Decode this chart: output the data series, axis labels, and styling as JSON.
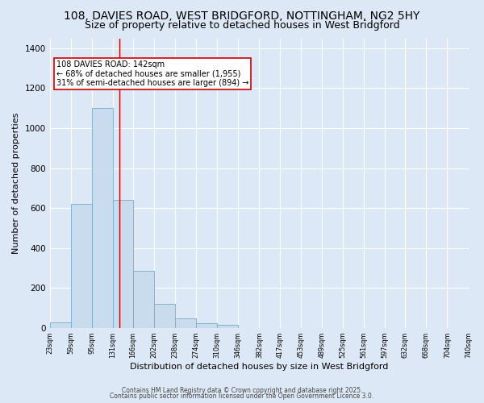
{
  "title_line1": "108, DAVIES ROAD, WEST BRIDGFORD, NOTTINGHAM, NG2 5HY",
  "title_line2": "Size of property relative to detached houses in West Bridgford",
  "xlabel": "Distribution of detached houses by size in West Bridgford",
  "ylabel": "Number of detached properties",
  "bin_labels": [
    "23sqm",
    "59sqm",
    "95sqm",
    "131sqm",
    "166sqm",
    "202sqm",
    "238sqm",
    "274sqm",
    "310sqm",
    "346sqm",
    "382sqm",
    "417sqm",
    "453sqm",
    "489sqm",
    "525sqm",
    "561sqm",
    "597sqm",
    "632sqm",
    "668sqm",
    "704sqm",
    "740sqm"
  ],
  "bin_edges": [
    23,
    59,
    95,
    131,
    166,
    202,
    238,
    274,
    310,
    346,
    382,
    417,
    453,
    489,
    525,
    561,
    597,
    632,
    668,
    704,
    740
  ],
  "bar_heights": [
    30,
    620,
    1100,
    640,
    285,
    120,
    50,
    25,
    15,
    0,
    0,
    0,
    0,
    0,
    0,
    0,
    0,
    0,
    0,
    0
  ],
  "bar_facecolor": "#c8dced",
  "bar_edgecolor": "#7aaac8",
  "vline_x": 142,
  "vline_color": "#cc0000",
  "annotation_text": "108 DAVIES ROAD: 142sqm\n← 68% of detached houses are smaller (1,955)\n31% of semi-detached houses are larger (894) →",
  "annotation_box_edgecolor": "#cc0000",
  "annotation_box_facecolor": "#ffffff",
  "ylim": [
    0,
    1450
  ],
  "yticks": [
    0,
    200,
    400,
    600,
    800,
    1000,
    1200,
    1400
  ],
  "background_color": "#dce8f5",
  "plot_background": "#dce8f5",
  "footer_line1": "Contains HM Land Registry data © Crown copyright and database right 2025.",
  "footer_line2": "Contains public sector information licensed under the Open Government Licence 3.0.",
  "title_fontsize": 10,
  "subtitle_fontsize": 9,
  "xlabel_fontsize": 8,
  "ylabel_fontsize": 8
}
